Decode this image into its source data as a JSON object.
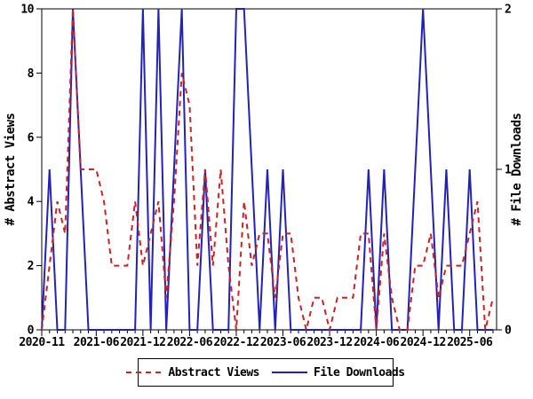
{
  "chart_data": {
    "type": "line",
    "title": "",
    "x": [
      "2020-11",
      "2020-12",
      "2021-01",
      "2021-02",
      "2021-03",
      "2021-04",
      "2021-05",
      "2021-06",
      "2021-07",
      "2021-08",
      "2021-09",
      "2021-10",
      "2021-11",
      "2021-12",
      "2022-01",
      "2022-02",
      "2022-03",
      "2022-04",
      "2022-05",
      "2022-06",
      "2022-07",
      "2022-08",
      "2022-09",
      "2022-10",
      "2022-11",
      "2022-12",
      "2023-01",
      "2023-02",
      "2023-03",
      "2023-04",
      "2023-05",
      "2023-06",
      "2023-07",
      "2023-08",
      "2023-09",
      "2023-10",
      "2023-11",
      "2023-12",
      "2024-01",
      "2024-02",
      "2024-03",
      "2024-04",
      "2024-05",
      "2024-06",
      "2024-07",
      "2024-08",
      "2024-09",
      "2024-10",
      "2024-11",
      "2024-12",
      "2025-01",
      "2025-02",
      "2025-03",
      "2025-04",
      "2025-05",
      "2025-06",
      "2025-07",
      "2025-08",
      "2025-09"
    ],
    "series": [
      {
        "name": "Abstract Views",
        "axis": "left",
        "color": "#cc2222",
        "style": "dashed",
        "values": [
          0,
          2,
          4,
          3,
          10,
          5,
          5,
          5,
          4,
          2,
          2,
          2,
          4,
          2,
          3,
          4,
          1,
          4,
          8,
          7,
          2,
          5,
          2,
          5,
          2,
          0,
          4,
          2,
          3,
          3,
          1,
          3,
          3,
          1,
          0,
          1,
          1,
          0,
          1,
          1,
          1,
          3,
          3,
          0,
          3,
          1,
          0,
          0,
          2,
          2,
          3,
          1,
          2,
          2,
          2,
          3,
          4,
          0,
          1
        ]
      },
      {
        "name": "File Downloads",
        "axis": "right",
        "color": "#2222bb",
        "style": "solid",
        "values": [
          0,
          1,
          0,
          0,
          2,
          1,
          0,
          0,
          0,
          0,
          0,
          0,
          0,
          2,
          0,
          2,
          0,
          1,
          2,
          0,
          0,
          1,
          0,
          0,
          0,
          2,
          2,
          1,
          0,
          1,
          0,
          1,
          0,
          0,
          0,
          0,
          0,
          0,
          0,
          0,
          0,
          0,
          1,
          0,
          1,
          0,
          0,
          0,
          1,
          2,
          1,
          0,
          1,
          0,
          0,
          1,
          0,
          0,
          0
        ]
      }
    ],
    "left_axis": {
      "label": "# Abstract Views",
      "min": 0,
      "max": 10,
      "ticks": [
        0,
        2,
        4,
        6,
        8,
        10
      ]
    },
    "right_axis": {
      "label": "# File Downloads",
      "min": 0,
      "max": 2,
      "ticks": [
        0,
        1,
        2
      ]
    },
    "x_axis": {
      "labeled_tick_indices": [
        0,
        7,
        13,
        19,
        25,
        31,
        37,
        43,
        49,
        55
      ],
      "labeled_ticks": [
        "2020-11",
        "2021-06",
        "2021-12",
        "2022-06",
        "2022-12",
        "2023-06",
        "2023-12",
        "2024-06",
        "2024-12",
        "2025-06"
      ]
    },
    "legend": {
      "position": "bottom-center",
      "entries": [
        "Abstract Views",
        "File Downloads"
      ]
    },
    "grid": "off",
    "frame_color": "#000000",
    "background_color": "#ffffff"
  }
}
